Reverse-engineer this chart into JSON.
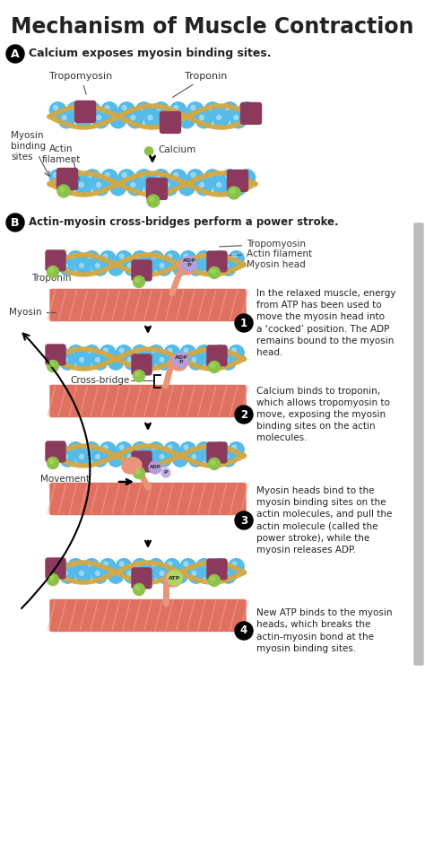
{
  "title": "Mechanism of Muscle Contraction",
  "title_fontsize": 17,
  "bg_color": "#ffffff",
  "section_a_text": "Calcium exposes myosin binding sites.",
  "section_b_text": "Actin-myosin cross-bridges perform a power stroke.",
  "step1_text": "In the relaxed muscle, energy\nfrom ATP has been used to\nmove the myosin head into\na ‘cocked’ position. The ADP\nremains bound to the myosin\nhead.",
  "step2_text": "Calcium binds to troponin,\nwhich allows tropomyosin to\nmove, exposing the myosin\nbinding sites on the actin\nmolecules.",
  "step3_text": "Myosin heads bind to the\nmyosin binding sites on the\nactin molecules, and pull the\nactin molecule (called the\npower stroke), while the\nmyosin releases ADP.",
  "step4_text": "New ATP binds to the myosin\nheads, which breaks the\nactin-myosin bond at the\nmyosin binding sites.",
  "actin_blue": "#55bbe8",
  "actin_dark_blue": "#2a8db8",
  "actin_light": "#7dd4f0",
  "tropomyosin_tan": "#d4a843",
  "troponin_purple": "#8b3a5e",
  "myosin_salmon": "#e8957a",
  "myosin_body_pink": "#e07060",
  "myosin_body_light": "#f0a090",
  "calcium_green": "#8bc34a",
  "adp_lavender": "#b39ddb",
  "atp_yellow": "#aed660",
  "text_color": "#222222",
  "label_color": "#333333",
  "arrow_color": "#111111",
  "scroll_bar_color": "#bbbbbb"
}
